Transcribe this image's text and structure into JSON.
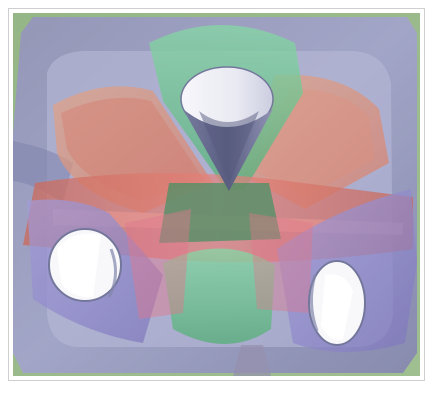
{
  "figure": {
    "subject": "3d-render-of-intersecting-cones",
    "colors": {
      "frame_border": "#cfcfcf",
      "background_green": "#94b484",
      "base_purple": "#8f90b8",
      "base_purple_light": "#a3a5cc",
      "cone_red": "#d66f6f",
      "cone_salmon": "#e59c86",
      "cone_green": "#7fd29a",
      "cone_violet": "#8b84c8",
      "cone_inner_white": "#f4f4f8",
      "cone_inner_shadow": "#5b5f86"
    }
  }
}
